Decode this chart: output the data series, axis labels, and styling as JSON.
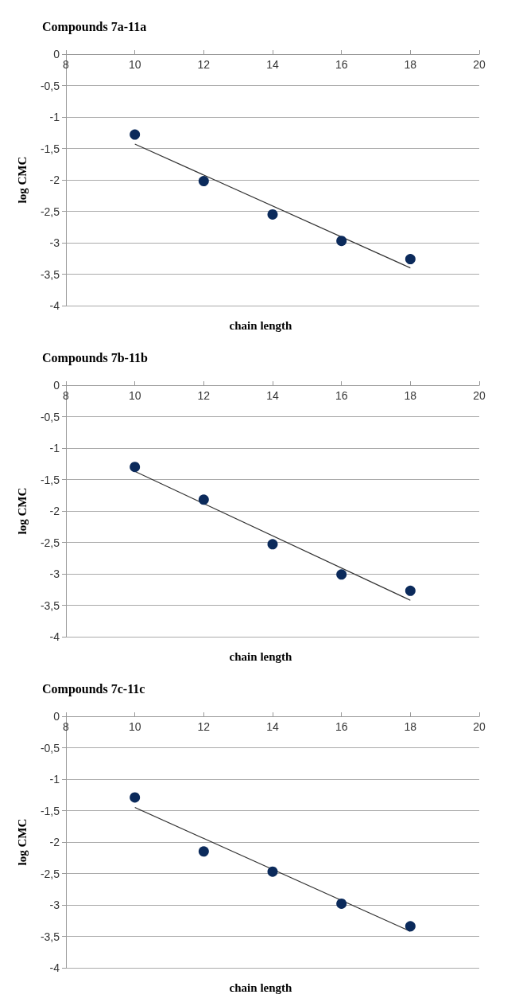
{
  "chart_data": [
    {
      "type": "scatter",
      "title": "Compounds 7a-11a",
      "xlabel": "chain length",
      "ylabel": "log CMC",
      "xlim": [
        8,
        20
      ],
      "xticks": [
        8,
        10,
        12,
        14,
        16,
        18,
        20
      ],
      "ylim": [
        -4,
        0
      ],
      "yticks": [
        0,
        {
          "value": -0.5,
          "label": "-0,5"
        },
        -1,
        {
          "value": -1.5,
          "label": "-1,5"
        },
        -2,
        {
          "value": -2.5,
          "label": "-2,5"
        },
        -3,
        {
          "value": -3.5,
          "label": "-3,5"
        },
        -4
      ],
      "grid": "y",
      "series": [
        {
          "color": "#0b2a5b",
          "marker": "circle",
          "x": [
            10,
            12,
            14,
            16,
            18
          ],
          "values": [
            -1.28,
            -2.02,
            -2.55,
            -2.97,
            -3.26
          ]
        },
        {
          "type": "line",
          "color": "#333333",
          "marker": "none",
          "x": [
            10,
            18
          ],
          "values": [
            -1.43,
            -3.4
          ]
        }
      ]
    },
    {
      "type": "scatter",
      "title": "Compounds 7b-11b",
      "xlabel": "chain length",
      "ylabel": "log CMC",
      "xlim": [
        8,
        20
      ],
      "xticks": [
        8,
        10,
        12,
        14,
        16,
        18,
        20
      ],
      "ylim": [
        -4,
        0
      ],
      "yticks": [
        0,
        {
          "value": -0.5,
          "label": "-0,5"
        },
        -1,
        {
          "value": -1.5,
          "label": "-1,5"
        },
        -2,
        {
          "value": -2.5,
          "label": "-2,5"
        },
        -3,
        {
          "value": -3.5,
          "label": "-3,5"
        },
        -4
      ],
      "grid": "y",
      "series": [
        {
          "color": "#0b2a5b",
          "marker": "circle",
          "x": [
            10,
            12,
            14,
            16,
            18
          ],
          "values": [
            -1.3,
            -1.82,
            -2.53,
            -3.01,
            -3.27
          ]
        },
        {
          "type": "line",
          "color": "#333333",
          "marker": "none",
          "x": [
            10,
            18
          ],
          "values": [
            -1.37,
            -3.42
          ]
        }
      ]
    },
    {
      "type": "scatter",
      "title": "Compounds 7c-11c",
      "xlabel": "chain length",
      "ylabel": "log CMC",
      "xlim": [
        8,
        20
      ],
      "xticks": [
        8,
        10,
        12,
        14,
        16,
        18,
        20
      ],
      "ylim": [
        -4,
        0
      ],
      "yticks": [
        0,
        {
          "value": -0.5,
          "label": "-0,5"
        },
        -1,
        {
          "value": -1.5,
          "label": "-1,5"
        },
        -2,
        {
          "value": -2.5,
          "label": "-2,5"
        },
        -3,
        {
          "value": -3.5,
          "label": "-3,5"
        },
        -4
      ],
      "grid": "y",
      "series": [
        {
          "color": "#0b2a5b",
          "marker": "circle",
          "x": [
            10,
            12,
            14,
            16,
            18
          ],
          "values": [
            -1.29,
            -2.15,
            -2.47,
            -2.98,
            -3.34
          ]
        },
        {
          "type": "line",
          "color": "#333333",
          "marker": "none",
          "x": [
            10,
            18
          ],
          "values": [
            -1.45,
            -3.42
          ]
        }
      ]
    }
  ]
}
